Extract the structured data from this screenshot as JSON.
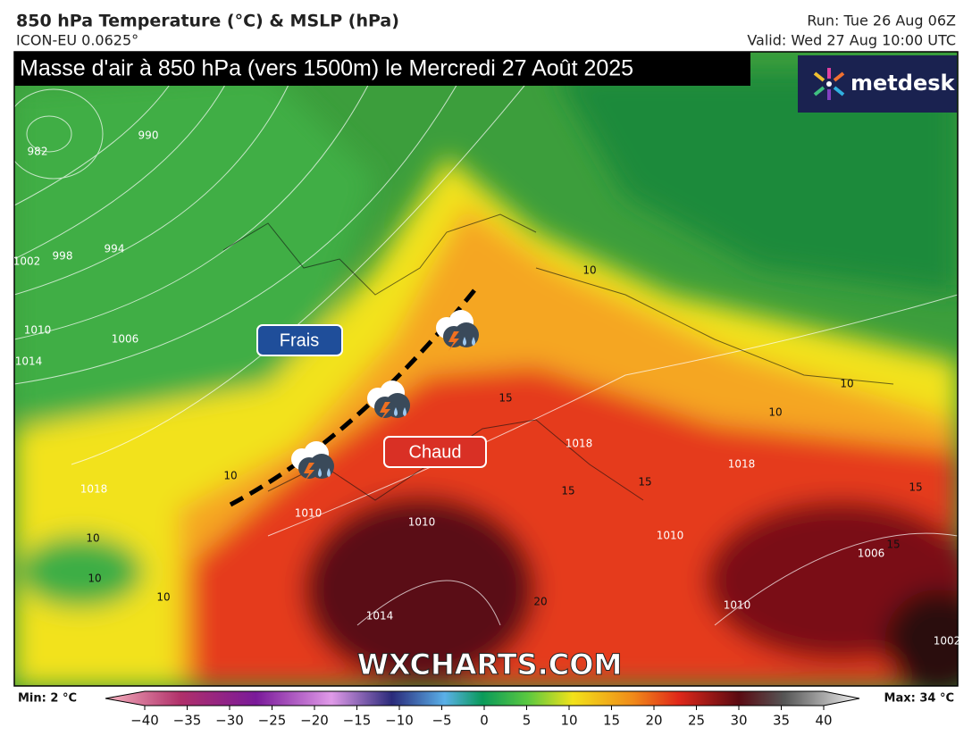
{
  "header": {
    "title": "850 hPa Temperature (°C) & MSLP (hPa)",
    "model": "ICON-EU 0.0625°",
    "run": "Run: Tue 26 Aug 06Z",
    "valid": "Valid: Wed 27 Aug 10:00 UTC"
  },
  "banner": "Masse d'air à 850 hPa (vers 1500m) le Mercredi 27 Août 2025",
  "logo": "metdesk",
  "labels": {
    "cool": "Frais",
    "warm": "Chaud"
  },
  "watermark": "WXCHARTS.COM",
  "isobar_labels": [
    "982",
    "990",
    "994",
    "998",
    "1002",
    "1010",
    "1006",
    "1014",
    "1018",
    "1010",
    "1010",
    "1014",
    "1010",
    "1006",
    "1018",
    "1018",
    "1002",
    "1010"
  ],
  "temperature_labels": [
    "10",
    "10",
    "15",
    "10",
    "10",
    "10",
    "10",
    "10",
    "15",
    "15",
    "20",
    "15",
    "15"
  ],
  "colorbar": {
    "min": "Min: 2 °C",
    "max": "Max: 34 °C",
    "ticks": [
      {
        "value": -40,
        "label": "−40"
      },
      {
        "value": -35,
        "label": "−35"
      },
      {
        "value": -30,
        "label": "−30"
      },
      {
        "value": -25,
        "label": "−25"
      },
      {
        "value": -20,
        "label": "−20"
      },
      {
        "value": -15,
        "label": "−15"
      },
      {
        "value": -10,
        "label": "−10"
      },
      {
        "value": -5,
        "label": "−5"
      },
      0,
      5,
      10,
      15,
      20,
      25,
      30,
      35,
      40
    ]
  }
}
